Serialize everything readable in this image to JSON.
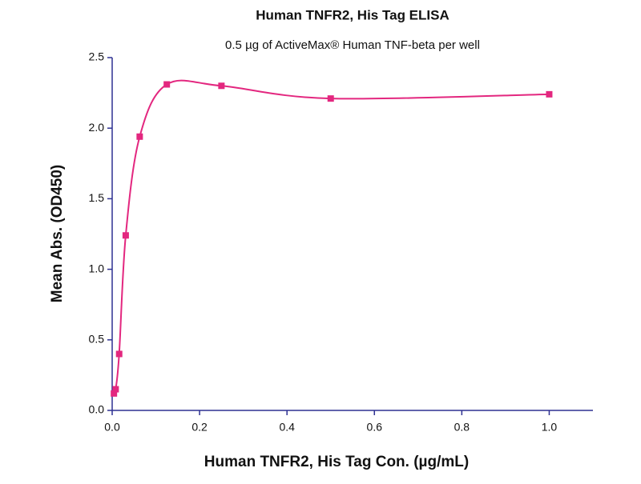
{
  "chart_data": {
    "type": "scatter",
    "title": "Human TNFR2, His Tag ELISA",
    "subtitle": "0.5 µg of ActiveMax® Human TNF-beta per well",
    "x_label": "Human TNFR2, His Tag Con. (µg/mL)",
    "y_label": "Mean Abs. (OD450)",
    "series": [
      {
        "color": "#e3277f",
        "x": [
          0.004,
          0.008,
          0.016,
          0.031,
          0.063,
          0.125,
          0.25,
          0.5,
          1.0
        ],
        "values": [
          0.12,
          0.15,
          0.4,
          1.24,
          1.94,
          2.31,
          2.3,
          2.21,
          2.24
        ]
      }
    ],
    "axis_color": "#2e3192",
    "xlim": [
      0,
      1.1
    ],
    "xticks": [
      {
        "value": 0,
        "label": "0.0"
      },
      {
        "value": 0.2,
        "label": "0.2"
      },
      {
        "value": 0.4,
        "label": "0.4"
      },
      {
        "value": 0.6,
        "label": "0.6"
      },
      {
        "value": 0.8,
        "label": "0.8"
      },
      {
        "value": 1,
        "label": "1.0"
      }
    ],
    "ylim": [
      0,
      2.5
    ],
    "yticks": [
      {
        "value": 0,
        "label": "0.0"
      },
      {
        "value": 0.5,
        "label": "0.5"
      },
      {
        "value": 1,
        "label": "1.0"
      },
      {
        "value": 1.5,
        "label": "1.5"
      },
      {
        "value": 2,
        "label": "2.0"
      },
      {
        "value": 2.5,
        "label": "2.5"
      }
    ]
  }
}
